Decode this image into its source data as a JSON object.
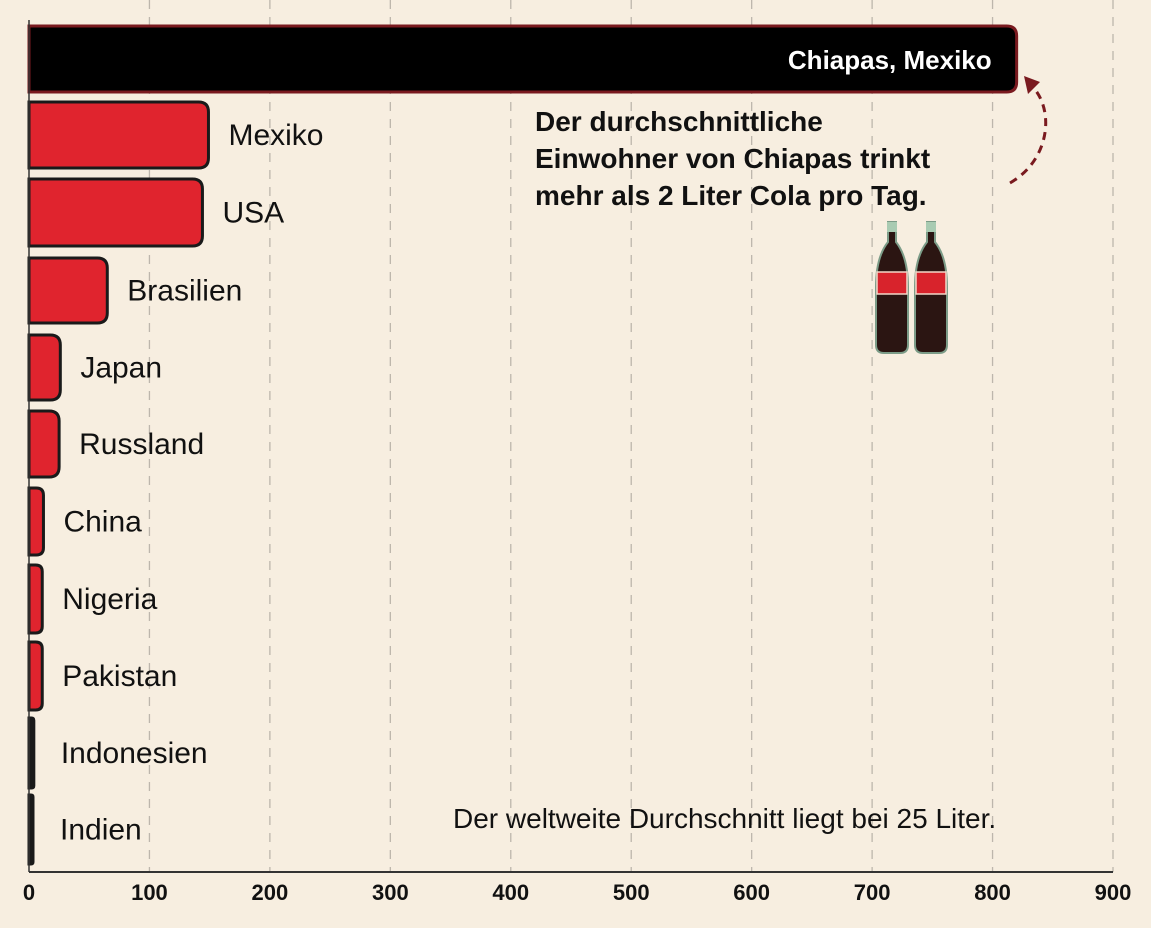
{
  "chart_data": {
    "type": "bar",
    "orientation": "horizontal",
    "categories": [
      "Chiapas, Mexiko",
      "Mexiko",
      "USA",
      "Brasilien",
      "Japan",
      "Russland",
      "China",
      "Nigeria",
      "Pakistan",
      "Indonesien",
      "Indien"
    ],
    "values": [
      820,
      149,
      144,
      65,
      26,
      25,
      12,
      11,
      11,
      4,
      3
    ],
    "xlim": [
      0,
      900
    ],
    "xticks": [
      0,
      100,
      200,
      300,
      400,
      500,
      600,
      700,
      800,
      900
    ],
    "grid": "vertical dashed",
    "colors": {
      "highlight": "#000000",
      "bars": "#e0242e",
      "border": "#7a1a1f",
      "background": "#f7eee0"
    },
    "annotation": [
      "Der durchschnittliche",
      "Einwohner von Chiapas trinkt",
      "mehr als 2 Liter Cola pro Tag."
    ],
    "footnote": "Der weltweite Durchschnitt liegt bei 25 Liter.",
    "icons": [
      "cola-bottle-icon",
      "cola-bottle-icon",
      "dashed-curved-arrow-icon"
    ]
  }
}
